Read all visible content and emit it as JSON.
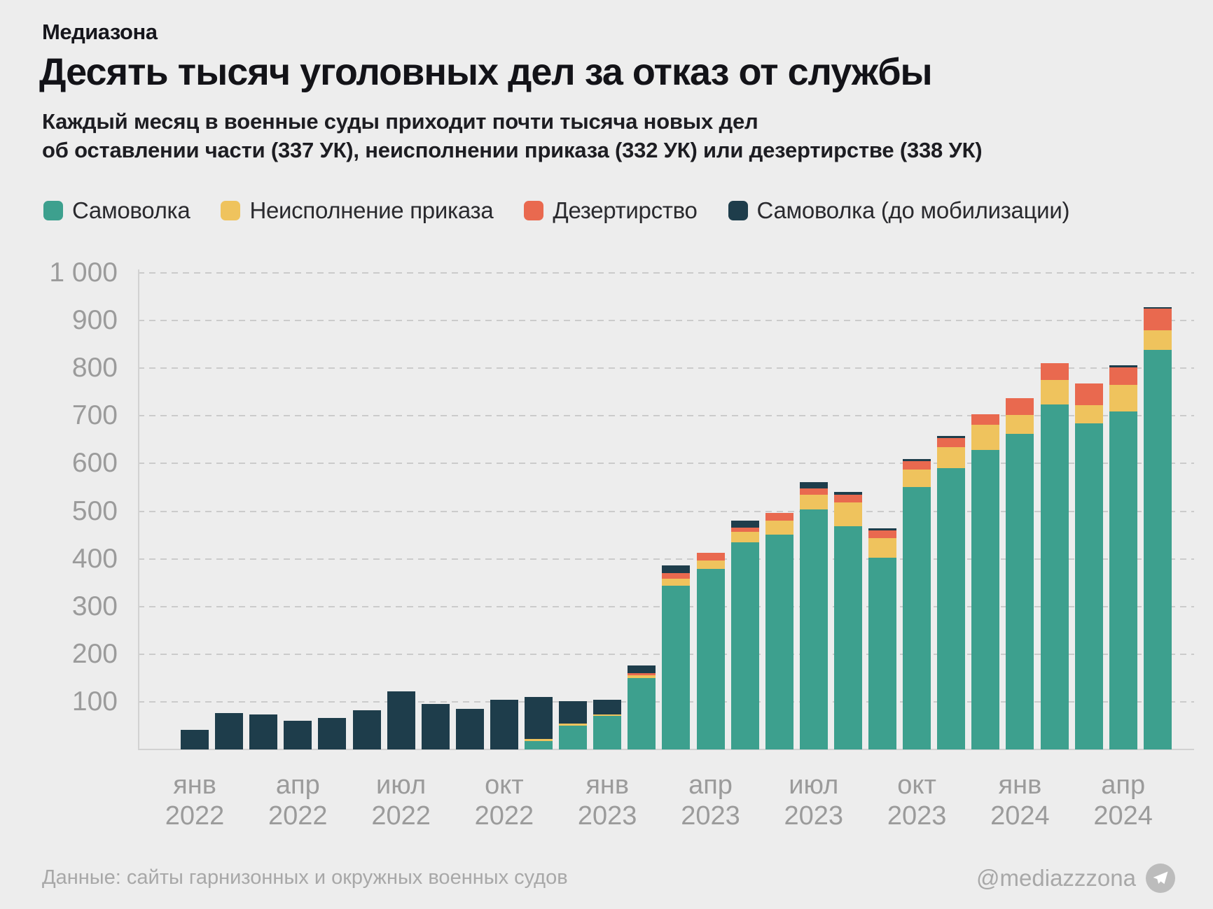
{
  "header": {
    "brand": "Медиазона",
    "title": "Десять тысяч уголовных дел за отказ от службы",
    "subtitle_line1": "Каждый месяц в военные суды приходит почти тысяча новых дел",
    "subtitle_line2": "об оставлении части (337 УК), неисполнении приказа (332 УК) или дезертирстве (338 УК)"
  },
  "colors": {
    "background": "#ededed",
    "samovolka": "#3da08e",
    "neispolnenie": "#efc35d",
    "dezertirstvo": "#e9694f",
    "do_mobilizacii": "#1e3d4b",
    "grid": "#cbcbcb",
    "axis": "#d2d2d2",
    "tick_text": "#9b9b9b",
    "footer_text": "#a8a8a8"
  },
  "chart_data": {
    "type": "bar",
    "stacked": true,
    "grid": "horizontal-dashed",
    "legend_position": "top",
    "title": "Десять тысяч уголовных дел за отказ от службы",
    "xlabel": "",
    "ylabel": "",
    "ylim": [
      0,
      1000
    ],
    "categories": [
      "янв 2022",
      "фев 2022",
      "мар 2022",
      "апр 2022",
      "май 2022",
      "июн 2022",
      "июл 2022",
      "авг 2022",
      "сен 2022",
      "окт 2022",
      "ноя 2022",
      "дек 2022",
      "янв 2023",
      "фев 2023",
      "мар 2023",
      "апр 2023",
      "май 2023",
      "июн 2023",
      "июл 2023",
      "авг 2023",
      "сен 2023",
      "окт 2023",
      "ноя 2023",
      "дек 2023",
      "янв 2024",
      "фев 2024",
      "мар 2024",
      "апр 2024",
      "май 2024"
    ],
    "series": [
      {
        "name": "Самоволка",
        "color_key": "samovolka",
        "values": [
          0,
          0,
          0,
          0,
          0,
          0,
          0,
          0,
          0,
          0,
          18,
          50,
          70,
          150,
          343,
          379,
          434,
          451,
          504,
          468,
          403,
          550,
          591,
          628,
          662,
          724,
          685,
          709,
          838
        ]
      },
      {
        "name": "Неисполнение приказа",
        "color_key": "neispolnenie",
        "values": [
          0,
          0,
          0,
          0,
          0,
          0,
          0,
          0,
          0,
          0,
          4,
          5,
          3,
          6,
          15,
          18,
          23,
          29,
          31,
          51,
          41,
          37,
          44,
          53,
          40,
          51,
          38,
          56,
          42
        ]
      },
      {
        "name": "Дезертирство",
        "color_key": "dezertirstvo",
        "values": [
          0,
          0,
          0,
          0,
          0,
          0,
          0,
          0,
          0,
          0,
          0,
          0,
          0,
          4,
          12,
          15,
          8,
          15,
          13,
          15,
          15,
          18,
          18,
          21,
          35,
          35,
          44,
          37,
          45
        ]
      },
      {
        "name": "Самоволка (до мобилизации)",
        "color_key": "do_mobilizacii",
        "values": [
          40,
          76,
          72,
          59,
          66,
          81,
          121,
          94,
          85,
          103,
          87,
          46,
          30,
          16,
          15,
          0,
          15,
          0,
          12,
          6,
          4,
          4,
          4,
          0,
          0,
          0,
          0,
          4,
          3
        ]
      }
    ],
    "yticks": [
      {
        "value": 1000,
        "label": "1 000"
      },
      {
        "value": 900,
        "label": "900"
      },
      {
        "value": 800,
        "label": "800"
      },
      {
        "value": 700,
        "label": "700"
      },
      {
        "value": 600,
        "label": "600"
      },
      {
        "value": 500,
        "label": "500"
      },
      {
        "value": 400,
        "label": "400"
      },
      {
        "value": 300,
        "label": "300"
      },
      {
        "value": 200,
        "label": "200"
      },
      {
        "value": 100,
        "label": "100"
      }
    ],
    "xticks": [
      {
        "index": 0,
        "line1": "янв",
        "line2": "2022"
      },
      {
        "index": 3,
        "line1": "апр",
        "line2": "2022"
      },
      {
        "index": 6,
        "line1": "июл",
        "line2": "2022"
      },
      {
        "index": 9,
        "line1": "окт",
        "line2": "2022"
      },
      {
        "index": 12,
        "line1": "янв",
        "line2": "2023"
      },
      {
        "index": 15,
        "line1": "апр",
        "line2": "2023"
      },
      {
        "index": 18,
        "line1": "июл",
        "line2": "2023"
      },
      {
        "index": 21,
        "line1": "окт",
        "line2": "2023"
      },
      {
        "index": 24,
        "line1": "янв",
        "line2": "2024"
      },
      {
        "index": 27,
        "line1": "апр",
        "line2": "2024"
      }
    ]
  },
  "legend": [
    {
      "label": "Самоволка",
      "color_key": "samovolka"
    },
    {
      "label": "Неисполнение приказа",
      "color_key": "neispolnenie"
    },
    {
      "label": "Дезертирство",
      "color_key": "dezertirstvo"
    },
    {
      "label": "Самоволка (до мобилизации)",
      "color_key": "do_mobilizacii"
    }
  ],
  "footer": {
    "source": "Данные: сайты гарнизонных и окружных военных судов",
    "handle": "@mediazzzona"
  }
}
